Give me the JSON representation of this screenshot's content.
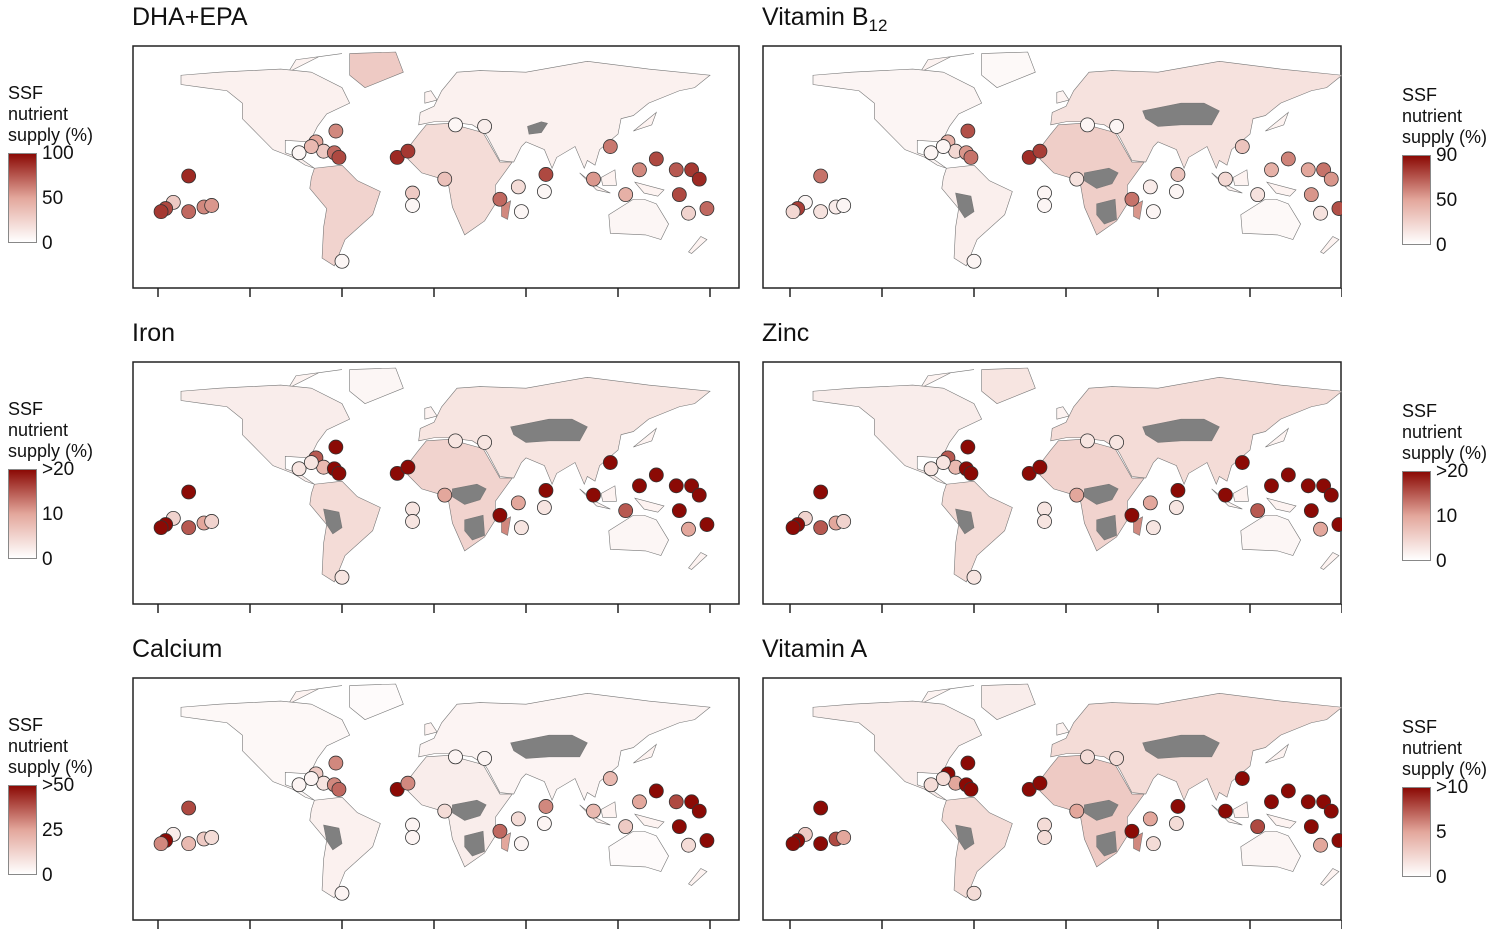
{
  "legend_title": [
    "SSF",
    "nutrient",
    "supply (%)"
  ],
  "scale_colors": {
    "low": "#ffffff",
    "mid": "#e3a79c",
    "high": "#8b0a05",
    "no_data": "#808080",
    "border": "#777777"
  },
  "chart_data": [
    {
      "type": "choropleth",
      "title": "DHA+EPA",
      "title_sub": "",
      "legend_ticks": [
        "100",
        "50",
        "0"
      ],
      "max": 100,
      "regions": {
        "north_america": 8,
        "greenland": 30,
        "south_america": 25,
        "eurasia": 8,
        "africa": 20,
        "australia": 5,
        "madagascar": 60
      },
      "no_data": [
        "afghanistan"
      ],
      "markers": [
        30,
        80,
        85,
        70,
        60,
        55,
        90,
        5,
        60,
        50,
        30,
        70,
        80,
        5,
        40,
        90,
        85,
        35,
        30,
        5,
        10,
        70,
        5,
        20,
        5,
        80,
        5,
        55,
        65,
        45,
        60,
        80,
        75,
        85,
        70,
        90,
        25,
        80
      ]
    },
    {
      "type": "choropleth",
      "title": "Vitamin B",
      "title_sub": "12",
      "legend_ticks": [
        "90",
        "50",
        "0"
      ],
      "max": 90,
      "regions": {
        "north_america": 5,
        "greenland": 3,
        "south_america": 8,
        "eurasia": 15,
        "africa": 25,
        "australia": 3,
        "madagascar": 50
      },
      "no_data": [
        "central_asia",
        "central_africa",
        "southern_africa",
        "andes"
      ],
      "markers": [
        5,
        75,
        20,
        15,
        10,
        5,
        60,
        5,
        70,
        40,
        20,
        50,
        60,
        5,
        5,
        80,
        75,
        15,
        5,
        5,
        5,
        60,
        5,
        10,
        5,
        30,
        5,
        20,
        30,
        15,
        40,
        55,
        45,
        60,
        70,
        50,
        15,
        50
      ]
    },
    {
      "type": "choropleth",
      "title": "Iron",
      "title_sub": "",
      "legend_ticks": [
        ">20",
        "10",
        "0"
      ],
      "max": 20,
      "regions": {
        "north_america": 2,
        "greenland": 1,
        "south_america": 4,
        "eurasia": 3,
        "africa": 5,
        "australia": 1,
        "madagascar": 12
      },
      "no_data": [
        "central_asia",
        "central_africa",
        "southern_africa",
        "andes"
      ],
      "markers": [
        5,
        90,
        25,
        15,
        10,
        5,
        40,
        3,
        30,
        15,
        8,
        30,
        35,
        3,
        3,
        40,
        60,
        10,
        3,
        3,
        3,
        35,
        3,
        10,
        3,
        30,
        3,
        20,
        20,
        15,
        25,
        70,
        40,
        50,
        80,
        60,
        10,
        55
      ]
    },
    {
      "type": "choropleth",
      "title": "Zinc",
      "title_sub": "",
      "legend_ticks": [
        ">20",
        "10",
        "0"
      ],
      "max": 20,
      "regions": {
        "north_america": 2,
        "greenland": 3,
        "south_america": 4,
        "eurasia": 4,
        "africa": 5,
        "australia": 1,
        "madagascar": 12
      },
      "no_data": [
        "central_asia",
        "central_africa",
        "southern_africa",
        "andes"
      ],
      "markers": [
        5,
        90,
        25,
        15,
        10,
        5,
        40,
        3,
        30,
        15,
        8,
        30,
        35,
        3,
        3,
        70,
        60,
        10,
        3,
        3,
        3,
        35,
        3,
        10,
        3,
        30,
        3,
        20,
        20,
        15,
        25,
        70,
        40,
        50,
        80,
        60,
        10,
        55
      ]
    },
    {
      "type": "choropleth",
      "title": "Calcium",
      "title_sub": "",
      "legend_ticks": [
        ">50",
        "25",
        "0"
      ],
      "max": 50,
      "regions": {
        "north_america": 2,
        "greenland": 1,
        "south_america": 4,
        "eurasia": 3,
        "africa": 5,
        "australia": 1,
        "madagascar": 25
      },
      "no_data": [
        "central_asia",
        "central_africa",
        "southern_africa",
        "andes"
      ],
      "markers": [
        5,
        90,
        30,
        20,
        15,
        10,
        40,
        3,
        30,
        15,
        8,
        30,
        35,
        3,
        3,
        60,
        30,
        10,
        3,
        3,
        3,
        35,
        3,
        10,
        3,
        30,
        3,
        20,
        20,
        15,
        25,
        70,
        40,
        50,
        80,
        60,
        10,
        55
      ]
    },
    {
      "type": "choropleth",
      "title": "Vitamin A",
      "title_sub": "",
      "legend_ticks": [
        ">10",
        "5",
        "0"
      ],
      "max": 10,
      "regions": {
        "north_america": 1,
        "greenland": 1,
        "south_america": 2,
        "eurasia": 2,
        "africa": 3,
        "australia": 0.5,
        "madagascar": 6
      },
      "no_data": [
        "central_asia",
        "central_africa",
        "southern_africa",
        "andes"
      ],
      "markers": [
        3,
        95,
        25,
        10,
        8,
        5,
        20,
        2,
        15,
        10,
        5,
        20,
        20,
        2,
        2,
        90,
        10,
        5,
        2,
        2,
        2,
        20,
        2,
        5,
        2,
        15,
        2,
        10,
        10,
        8,
        15,
        60,
        30,
        40,
        90,
        60,
        5,
        40
      ]
    }
  ]
}
